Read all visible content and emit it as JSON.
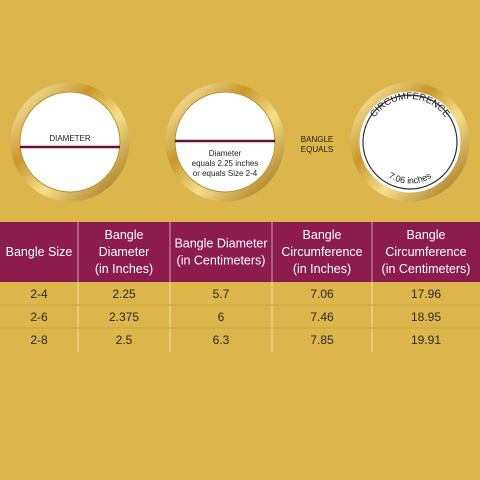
{
  "rings": {
    "diameter": "DIAMETER",
    "diameter_note": [
      "Diameter",
      "equals 2.25 inches",
      "or equals Size 2-4"
    ],
    "bangle_equals": [
      "BANGLE",
      "EQUALS"
    ],
    "circumference": "CIRCUMFERENCE",
    "circumference_value": "7.06 inches"
  },
  "table": {
    "headers": [
      [
        "Bangle Size"
      ],
      [
        "Bangle",
        "Diameter",
        "(in Inches)"
      ],
      [
        "Bangle Diameter",
        "(in Centimeters)"
      ],
      [
        "Bangle",
        "Circumference",
        "(in Inches)"
      ],
      [
        "Bangle",
        "Circumference",
        "(in Centimeters)"
      ]
    ],
    "rows": [
      [
        "2-4",
        "2.25",
        "5.7",
        "7.06",
        "17.96"
      ],
      [
        "2-6",
        "2.375",
        "6",
        "7.46",
        "18.95"
      ],
      [
        "2-8",
        "2.5",
        "6.3",
        "7.85",
        "19.91"
      ]
    ]
  }
}
